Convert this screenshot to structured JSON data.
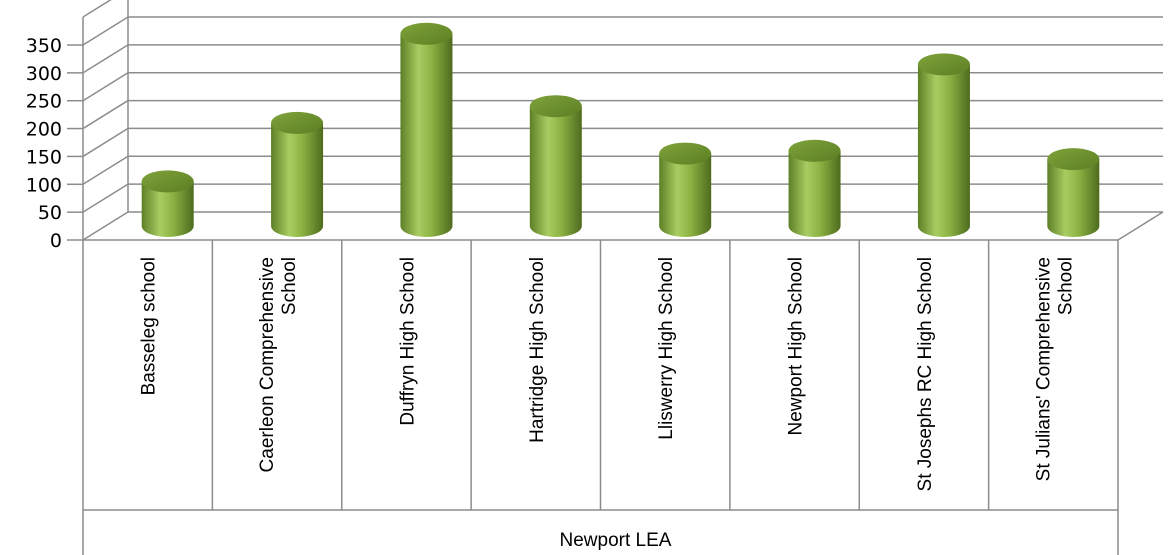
{
  "chart_data": {
    "type": "bar",
    "style": "3d-cylinder",
    "bar_color": "#8DB243",
    "y_ticks": [
      "0",
      "50",
      "100",
      "150",
      "200",
      "250",
      "300",
      "350"
    ],
    "ylim": [
      0,
      350
    ],
    "grid": true,
    "legend": "none",
    "group_label": "Newport LEA",
    "categories": [
      [
        "Basseleg school"
      ],
      [
        "Caerleon Comprehensive",
        "School"
      ],
      [
        "Duffryn High School"
      ],
      [
        "Hartridge High School"
      ],
      [
        "Lliswerry High School"
      ],
      [
        "Newport High School"
      ],
      [
        "St Josephs RC High School"
      ],
      [
        "St Julians' Comprehensive",
        "School"
      ]
    ],
    "values": [
      80,
      185,
      345,
      215,
      130,
      135,
      290,
      120
    ]
  }
}
